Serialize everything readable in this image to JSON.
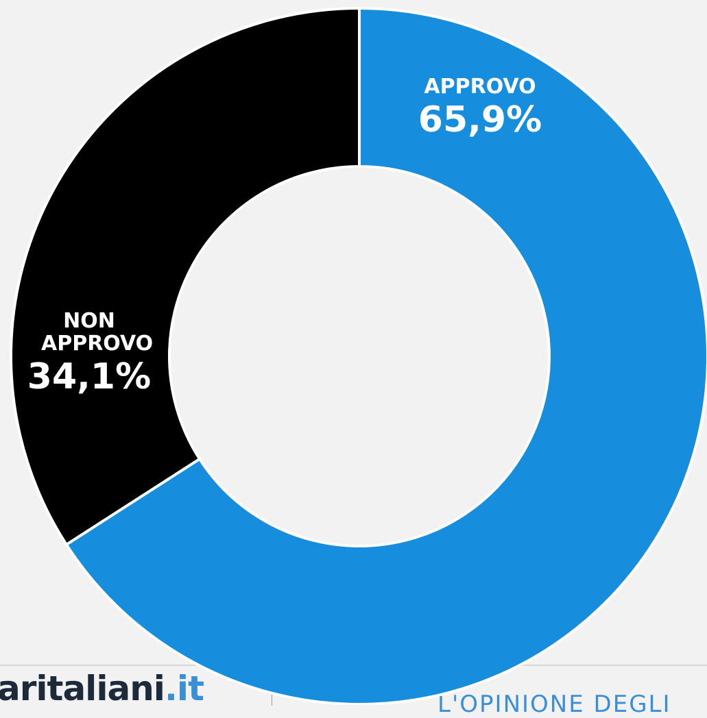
{
  "chart_data": {
    "type": "donut",
    "categories": [
      "APPROVO",
      "NON APPROVO"
    ],
    "values": [
      65.9,
      34.1
    ],
    "value_labels": [
      "65,9%",
      "34,1%"
    ],
    "colors": [
      "#178ddd",
      "#000000"
    ]
  },
  "footer": {
    "logo": "aritaliani",
    "logo_suffix": ".it",
    "tagline": "L'OPINIONE DEGLI"
  }
}
